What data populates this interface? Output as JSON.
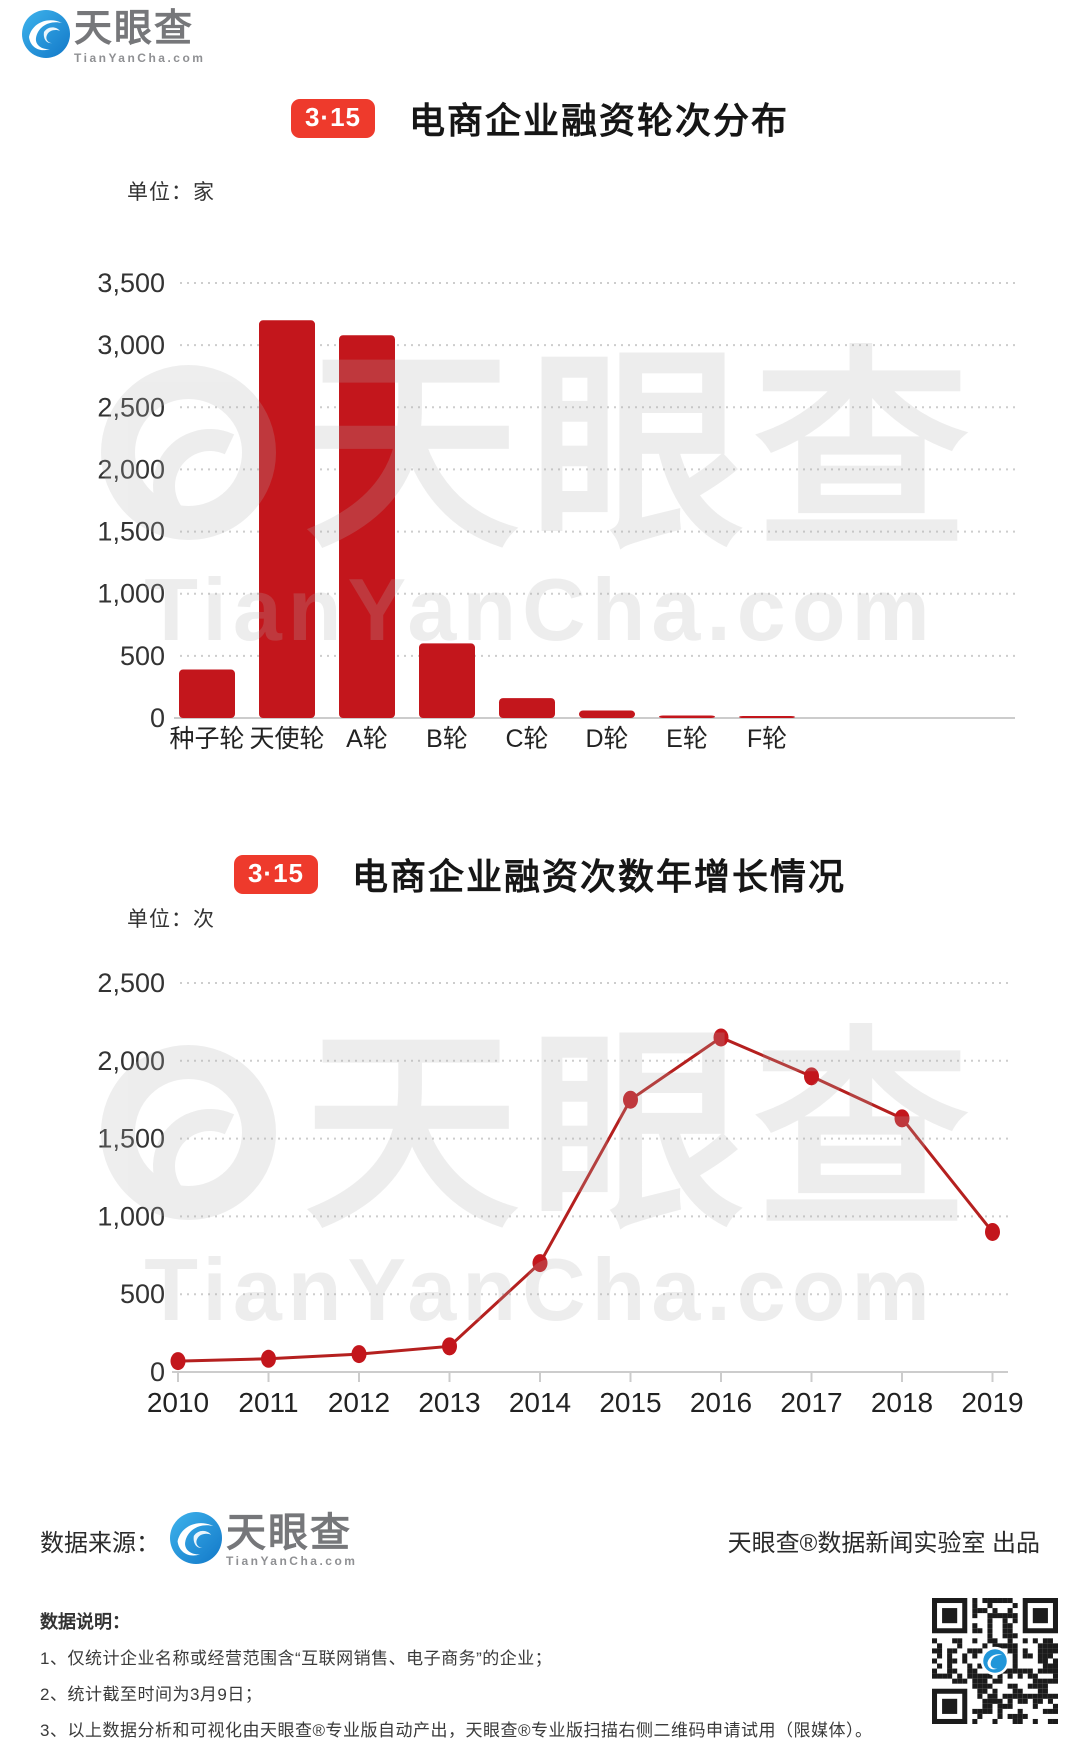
{
  "header": {
    "brand_name": "天眼查",
    "brand_domain": "TianYanCha.com"
  },
  "watermark": {
    "icon": "tianyancha-swirl",
    "text": "天眼查",
    "domain": "TianYanCha.com"
  },
  "colors": {
    "bar_red": "#c3161c",
    "line_red": "#b5201f",
    "badge_red": "#ee3a2c",
    "brand_blue": "#2196d9",
    "grid_gray": "#cccccc",
    "text_dark": "#333333"
  },
  "chart_data": [
    {
      "type": "bar",
      "badge": "3·15",
      "title": "电商企业融资轮次分布",
      "unit_label": "单位：家",
      "categories": [
        "种子轮",
        "天使轮",
        "A轮",
        "B轮",
        "C轮",
        "D轮",
        "E轮",
        "F轮"
      ],
      "values": [
        390,
        3200,
        3080,
        600,
        160,
        60,
        20,
        5
      ],
      "ylim": [
        0,
        3500
      ],
      "ytick_step": 500,
      "grid": "horizontal-dotted",
      "legend": "none",
      "bar_color": "#c3161c"
    },
    {
      "type": "line",
      "badge": "3·15",
      "title": "电商企业融资次数年增长情况",
      "unit_label": "单位：次",
      "categories": [
        "2010",
        "2011",
        "2012",
        "2013",
        "2014",
        "2015",
        "2016",
        "2017",
        "2018",
        "2019"
      ],
      "values": [
        70,
        85,
        115,
        165,
        700,
        1750,
        2150,
        1900,
        1630,
        900
      ],
      "ylim": [
        0,
        2500
      ],
      "ytick_step": 500,
      "grid": "horizontal-dotted",
      "legend": "none",
      "line_color": "#b5201f",
      "marker_color": "#c3161c",
      "marker": "circle"
    }
  ],
  "footer": {
    "source_label": "数据来源：",
    "brand_name": "天眼查",
    "brand_domain": "TianYanCha.com",
    "credit": "天眼查®数据新闻实验室 出品",
    "notes_title": "数据说明：",
    "notes": [
      "1、仅统计企业名称或经营范围含“互联网销售、电子商务”的企业；",
      "2、统计截至时间为3月9日；",
      "3、以上数据分析和可视化由天眼查®专业版自动产出，天眼查®专业版扫描右侧二维码申请试用（限媒体）。"
    ]
  }
}
